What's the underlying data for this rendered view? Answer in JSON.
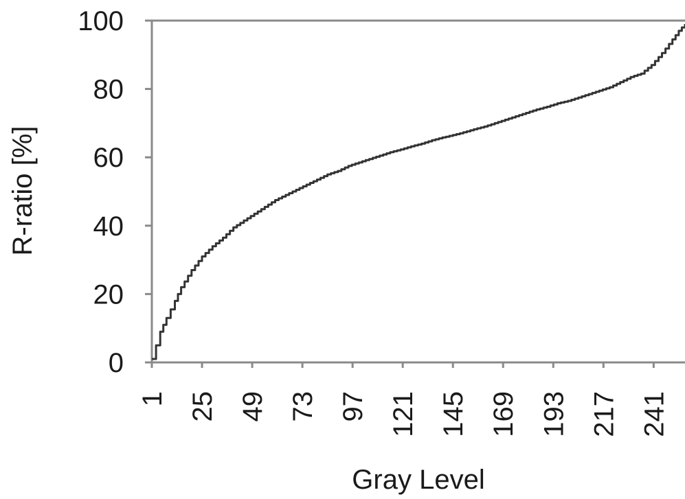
{
  "chart_data": {
    "type": "line",
    "title": "",
    "xlabel": "Gray Level",
    "ylabel": "R-ratio [%]",
    "xlim": [
      1,
      256
    ],
    "ylim": [
      0,
      100
    ],
    "x_ticks": [
      1,
      25,
      49,
      73,
      97,
      121,
      145,
      169,
      193,
      217,
      241
    ],
    "x_tick_labels": [
      "1",
      "25",
      "49",
      "73",
      "97",
      "121",
      "145",
      "169",
      "193",
      "217",
      "241"
    ],
    "y_ticks": [
      0,
      20,
      40,
      60,
      80,
      100
    ],
    "y_tick_labels": [
      "0",
      "20",
      "40",
      "60",
      "80",
      "100"
    ],
    "grid": false,
    "legend": "none",
    "colors": {
      "line": "#333333",
      "axes": "#8a8a8a"
    },
    "series": [
      {
        "x": [
          1,
          3,
          5,
          8,
          12,
          15,
          20,
          25,
          30,
          35,
          40,
          45,
          50,
          55,
          60,
          65,
          70,
          75,
          80,
          85,
          90,
          95,
          100,
          105,
          110,
          115,
          120,
          125,
          130,
          135,
          140,
          145,
          150,
          155,
          160,
          165,
          170,
          175,
          180,
          185,
          190,
          195,
          200,
          205,
          210,
          215,
          220,
          225,
          230,
          235,
          240,
          245,
          250,
          253,
          256
        ],
        "y": [
          1,
          5,
          9,
          13,
          18,
          22,
          27,
          31,
          34,
          36.5,
          39.5,
          41.5,
          43.5,
          45.5,
          47.5,
          49,
          50.5,
          52,
          53.5,
          55,
          56,
          57.5,
          58.5,
          59.5,
          60.5,
          61.5,
          62.3,
          63.2,
          64,
          65,
          65.8,
          66.5,
          67.3,
          68.2,
          69,
          70,
          71,
          72,
          73,
          74,
          74.8,
          75.8,
          76.5,
          77.5,
          78.5,
          79.5,
          80.5,
          82,
          83.5,
          84.5,
          87,
          90.5,
          94.5,
          97,
          99
        ]
      }
    ]
  }
}
